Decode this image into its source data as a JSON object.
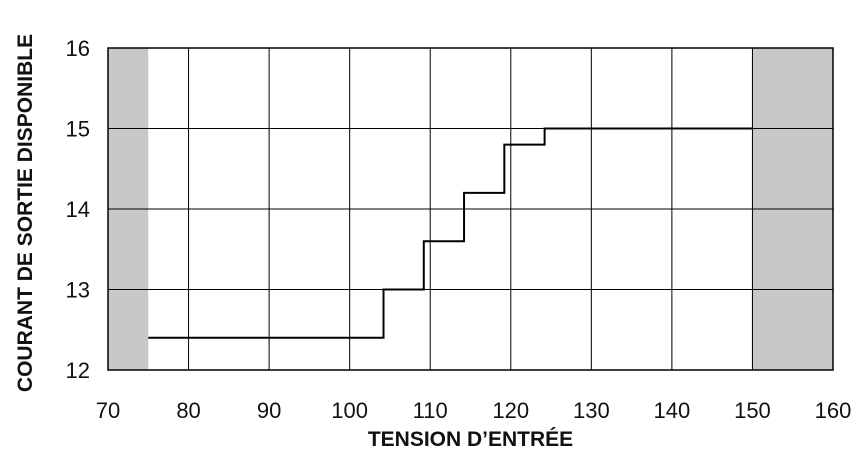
{
  "chart_data": {
    "type": "line",
    "step": true,
    "title": "",
    "xlabel": "TENSION D’ENTRÉE",
    "ylabel": "COURANT DE SORTIE DISPONIBLE",
    "xlim": [
      70,
      160
    ],
    "ylim": [
      12,
      16
    ],
    "x_ticks": [
      70,
      80,
      90,
      100,
      110,
      120,
      130,
      140,
      150,
      160
    ],
    "y_ticks": [
      12,
      13,
      14,
      15,
      16
    ],
    "grid": true,
    "shaded_regions": [
      {
        "x_range": [
          70,
          75
        ],
        "color": "#c8c8c8"
      },
      {
        "x_range": [
          150,
          160
        ],
        "color": "#c8c8c8"
      }
    ],
    "series": [
      {
        "x": [
          75,
          104.2,
          104.2,
          109.2,
          109.2,
          114.2,
          114.2,
          119.2,
          119.2,
          124.2,
          124.2,
          150
        ],
        "y": [
          12.4,
          12.4,
          13.0,
          13.0,
          13.6,
          13.6,
          14.2,
          14.2,
          14.8,
          14.8,
          15.0,
          15.0
        ],
        "color": "#000000"
      }
    ]
  }
}
